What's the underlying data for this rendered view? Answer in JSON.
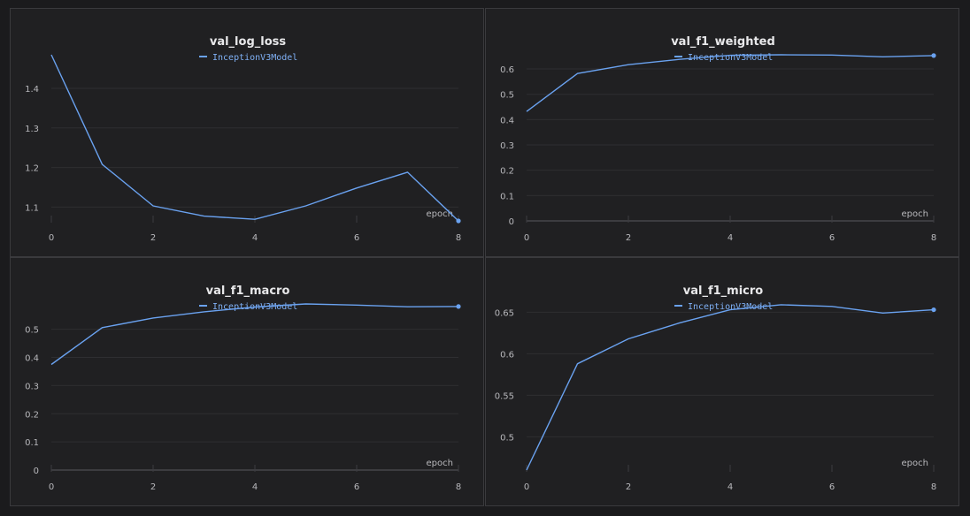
{
  "chart_data": [
    {
      "type": "line",
      "title": "val_log_loss",
      "xlabel": "epoch",
      "x": [
        0,
        1,
        2,
        3,
        4,
        5,
        6,
        7,
        8
      ],
      "xticks": [
        0,
        2,
        4,
        6,
        8
      ],
      "xlim": [
        0,
        8
      ],
      "ylim": [
        1.065,
        1.485
      ],
      "yticks": [
        "1.1",
        "1.2",
        "1.3",
        "1.4"
      ],
      "ytick_values": [
        1.1,
        1.2,
        1.3,
        1.4
      ],
      "series": [
        {
          "name": "InceptionV3Model",
          "color": "#6aa2f0",
          "values": [
            1.485,
            1.208,
            1.103,
            1.077,
            1.069,
            1.103,
            1.148,
            1.188,
            1.065
          ]
        }
      ],
      "grid": true,
      "legend": "top-center"
    },
    {
      "type": "line",
      "title": "val_f1_weighted",
      "xlabel": "epoch",
      "x": [
        0,
        1,
        2,
        3,
        4,
        5,
        6,
        7,
        8
      ],
      "xticks": [
        0,
        2,
        4,
        6,
        8
      ],
      "xlim": [
        0,
        8
      ],
      "ylim": [
        0,
        0.656
      ],
      "yticks": [
        "0",
        "0.1",
        "0.2",
        "0.3",
        "0.4",
        "0.5",
        "0.6"
      ],
      "ytick_values": [
        0,
        0.1,
        0.2,
        0.3,
        0.4,
        0.5,
        0.6
      ],
      "series": [
        {
          "name": "InceptionV3Model",
          "color": "#6aa2f0",
          "values": [
            0.432,
            0.582,
            0.617,
            0.638,
            0.654,
            0.656,
            0.655,
            0.648,
            0.653
          ]
        }
      ],
      "grid": true,
      "legend": "top-center"
    },
    {
      "type": "line",
      "title": "val_f1_macro",
      "xlabel": "epoch",
      "x": [
        0,
        1,
        2,
        3,
        4,
        5,
        6,
        7,
        8
      ],
      "xticks": [
        0,
        2,
        4,
        6,
        8
      ],
      "xlim": [
        0,
        8
      ],
      "ylim": [
        0,
        0.59
      ],
      "yticks": [
        "0",
        "0.1",
        "0.2",
        "0.3",
        "0.4",
        "0.5"
      ],
      "ytick_values": [
        0,
        0.1,
        0.2,
        0.3,
        0.4,
        0.5
      ],
      "series": [
        {
          "name": "InceptionV3Model",
          "color": "#6aa2f0",
          "values": [
            0.375,
            0.506,
            0.54,
            0.562,
            0.579,
            0.59,
            0.586,
            0.58,
            0.581
          ]
        }
      ],
      "grid": true,
      "legend": "top-center"
    },
    {
      "type": "line",
      "title": "val_f1_micro",
      "xlabel": "epoch",
      "x": [
        0,
        1,
        2,
        3,
        4,
        5,
        6,
        7,
        8
      ],
      "xticks": [
        0,
        2,
        4,
        6,
        8
      ],
      "xlim": [
        0,
        8
      ],
      "ylim": [
        0.46,
        0.66
      ],
      "yticks": [
        "0.5",
        "0.55",
        "0.6",
        "0.65"
      ],
      "ytick_values": [
        0.5,
        0.55,
        0.6,
        0.65
      ],
      "series": [
        {
          "name": "InceptionV3Model",
          "color": "#6aa2f0",
          "values": [
            0.46,
            0.588,
            0.618,
            0.637,
            0.653,
            0.659,
            0.657,
            0.649,
            0.653
          ]
        }
      ],
      "grid": true,
      "legend": "top-center"
    }
  ]
}
